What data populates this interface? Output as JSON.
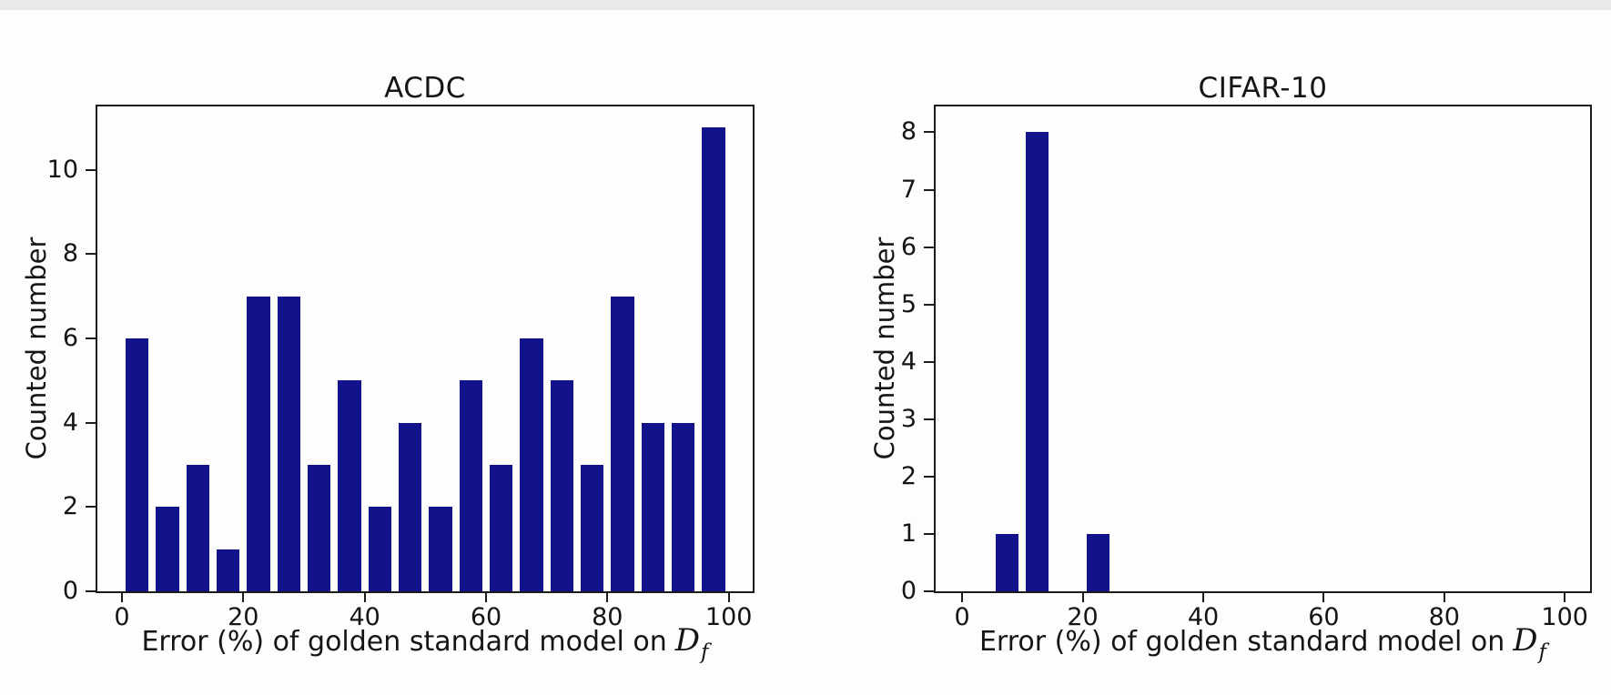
{
  "page": {
    "background": "#fdfdfd",
    "top_edge_color": "#e9e9e9"
  },
  "labels": {
    "xlabel_prefix": "Error (%) of golden standard model on",
    "math_symbol": "D",
    "math_subscript": "f"
  },
  "chart_data": [
    {
      "type": "bar",
      "title": "ACDC",
      "xlabel": "Error (%) of golden standard model on D_f",
      "ylabel": "Counted number",
      "bin_start": 0,
      "bin_width": 5,
      "bin_edges": [
        0,
        5,
        10,
        15,
        20,
        25,
        30,
        35,
        40,
        45,
        50,
        55,
        60,
        65,
        70,
        75,
        80,
        85,
        90,
        95,
        100
      ],
      "values": [
        6,
        2,
        3,
        1,
        7,
        7,
        3,
        5,
        2,
        4,
        2,
        5,
        3,
        6,
        5,
        3,
        7,
        4,
        4,
        11
      ],
      "xticks": [
        0,
        20,
        40,
        60,
        80,
        100
      ],
      "yticks": [
        0,
        2,
        4,
        6,
        8,
        10
      ],
      "xlim": [
        -4.05,
        103.95
      ],
      "ylim": [
        0,
        11.5
      ],
      "bar_color": "#12128b",
      "bar_rel_width": 0.76,
      "grid": false,
      "legend": null
    },
    {
      "type": "bar",
      "title": "CIFAR-10",
      "xlabel": "Error (%) of golden standard model on D_f",
      "ylabel": "Counted number",
      "bin_start": 0,
      "bin_width": 5,
      "bin_edges": [
        0,
        5,
        10,
        15,
        20,
        25,
        30,
        35,
        40,
        45,
        50,
        55,
        60,
        65,
        70,
        75,
        80,
        85,
        90,
        95,
        100
      ],
      "values": [
        0,
        1,
        8,
        0,
        1,
        0,
        0,
        0,
        0,
        0,
        0,
        0,
        0,
        0,
        0,
        0,
        0,
        0,
        0,
        0
      ],
      "xticks": [
        0,
        20,
        40,
        60,
        80,
        100
      ],
      "yticks": [
        0,
        1,
        2,
        3,
        4,
        5,
        6,
        7,
        8
      ],
      "xlim": [
        -4.4,
        104.2
      ],
      "ylim": [
        0,
        8.45
      ],
      "bar_color": "#12128b",
      "bar_rel_width": 0.76,
      "grid": false,
      "legend": null
    }
  ]
}
